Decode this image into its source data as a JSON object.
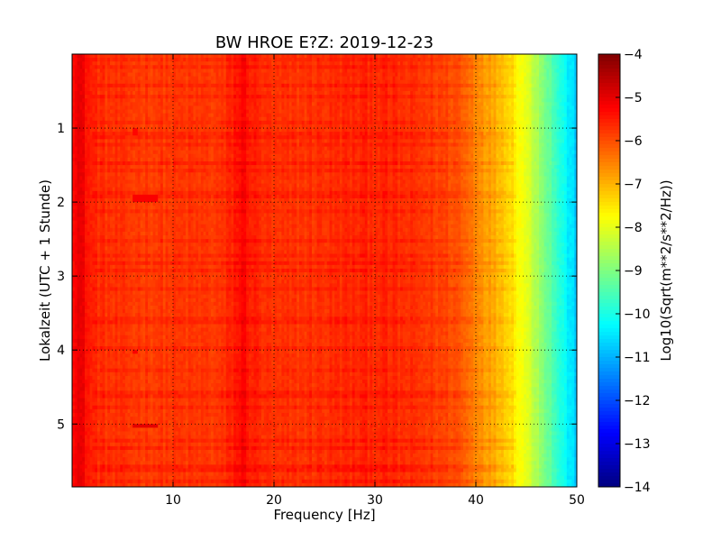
{
  "chart_data": {
    "type": "heatmap",
    "title": "BW HROE E?Z: 2019-12-23",
    "xlabel": "Frequency [Hz]",
    "ylabel": "Lokalzeit (UTC + 1 Stunde)",
    "colorbar_label": "Log10(Sqrt(m**2/s**2/Hz))",
    "xlim": [
      0,
      50
    ],
    "ylim": [
      0,
      5.85
    ],
    "y_inverted": true,
    "x_ticks": [
      10,
      20,
      30,
      40,
      50
    ],
    "y_ticks": [
      1,
      2,
      3,
      4,
      5
    ],
    "color_range": [
      -14,
      -4
    ],
    "colorbar_ticks": [
      -4,
      -5,
      -6,
      -7,
      -8,
      -9,
      -10,
      -11,
      -12,
      -13,
      -14
    ],
    "colormap": "jet",
    "grid": true,
    "grid_style": "dotted",
    "spectrum_profile": {
      "frequency_hz": [
        0,
        0.5,
        1,
        1.5,
        2,
        3,
        5,
        10,
        15,
        16.5,
        17,
        18,
        20,
        25,
        30,
        35,
        38,
        40,
        42,
        43,
        44,
        45,
        46,
        47,
        48,
        49,
        50
      ],
      "log10_amplitude": [
        -5.3,
        -5.0,
        -5.1,
        -5.4,
        -5.6,
        -5.7,
        -5.8,
        -5.8,
        -5.8,
        -5.4,
        -5.3,
        -5.6,
        -5.8,
        -5.7,
        -5.6,
        -5.8,
        -6.0,
        -6.5,
        -7.0,
        -7.2,
        -7.6,
        -8.0,
        -8.5,
        -9.1,
        -9.7,
        -10.3,
        -10.8
      ]
    },
    "time_events": [
      {
        "time_h": 0.05,
        "strength": 0.4
      },
      {
        "time_h": 0.15,
        "strength": 0.5
      },
      {
        "time_h": 0.42,
        "strength": 0.6
      },
      {
        "time_h": 0.55,
        "strength": 0.5
      },
      {
        "time_h": 0.92,
        "strength": 0.4
      },
      {
        "time_h": 1.05,
        "strength": 0.5
      },
      {
        "time_h": 1.12,
        "strength": 0.6
      },
      {
        "time_h": 1.22,
        "strength": 0.5
      },
      {
        "time_h": 1.45,
        "strength": 0.7
      },
      {
        "time_h": 1.55,
        "strength": 0.5
      },
      {
        "time_h": 1.85,
        "strength": 0.5
      },
      {
        "time_h": 1.92,
        "strength": 0.6
      },
      {
        "time_h": 2.1,
        "strength": 0.4
      },
      {
        "time_h": 2.5,
        "strength": 0.5
      },
      {
        "time_h": 2.7,
        "strength": 0.5
      },
      {
        "time_h": 2.82,
        "strength": 0.7
      },
      {
        "time_h": 2.9,
        "strength": 0.6
      },
      {
        "time_h": 3.15,
        "strength": 0.5
      },
      {
        "time_h": 3.55,
        "strength": 0.5
      },
      {
        "time_h": 3.62,
        "strength": 0.6
      },
      {
        "time_h": 3.95,
        "strength": 0.5
      },
      {
        "time_h": 4.25,
        "strength": 0.4
      },
      {
        "time_h": 4.55,
        "strength": 0.6
      },
      {
        "time_h": 4.62,
        "strength": 0.7
      },
      {
        "time_h": 4.78,
        "strength": 0.5
      },
      {
        "time_h": 5.2,
        "strength": 0.6
      },
      {
        "time_h": 5.32,
        "strength": 0.7
      },
      {
        "time_h": 5.55,
        "strength": 0.8
      },
      {
        "time_h": 5.62,
        "strength": 0.8
      },
      {
        "time_h": 5.75,
        "strength": 0.6
      }
    ],
    "narrowband_spots": [
      {
        "frequency_hz": [
          6.0,
          8.5
        ],
        "time_h": 1.95,
        "log10_amplitude": -5.2
      },
      {
        "frequency_hz": [
          6.0,
          8.5
        ],
        "time_h": 5.02,
        "log10_amplitude": -5.0
      },
      {
        "frequency_hz": [
          6.0,
          6.6
        ],
        "time_h": 4.02,
        "log10_amplitude": -5.2
      },
      {
        "frequency_hz": [
          6.0,
          6.6
        ],
        "time_h": 1.05,
        "log10_amplitude": -5.3
      }
    ]
  }
}
